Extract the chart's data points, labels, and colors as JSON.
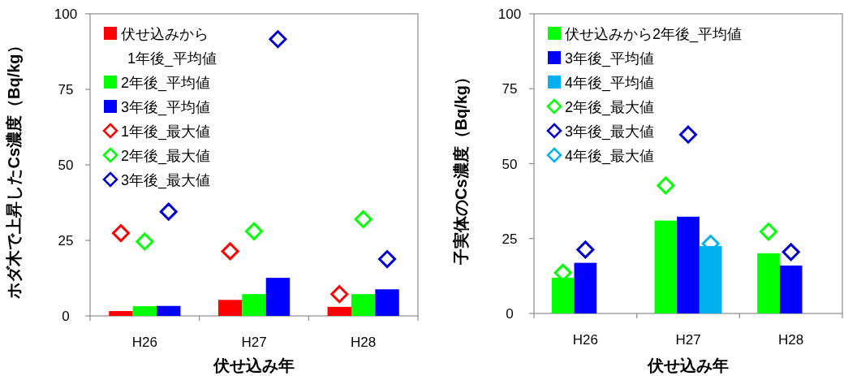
{
  "chart_data": [
    {
      "type": "bar",
      "categories": [
        "H26",
        "H27",
        "H28"
      ],
      "xlabel": "伏せ込み年",
      "ylabel": "ホダ木で上昇したCs濃度（Bq/kg）",
      "ylim": [
        0,
        100
      ],
      "yticks": [
        0,
        25,
        50,
        75,
        100
      ],
      "legend": "top left",
      "grid": false,
      "series": [
        {
          "name": "伏せ込みから\n1年後_平均値",
          "color": "#ff0000",
          "values": [
            1.6,
            5.3,
            3.0
          ]
        },
        {
          "name": "2年後_平均値",
          "color": "#00ff00",
          "values": [
            3.2,
            7.2,
            7.2
          ]
        },
        {
          "name": "3年後_平均値",
          "color": "#0000ff",
          "values": [
            3.3,
            12.6,
            8.8
          ]
        },
        {
          "name": "1年後_最大値",
          "type": "scatter",
          "marker": "diamond",
          "color": "#ff0000",
          "x": [
            "H26",
            "H27",
            "H28"
          ],
          "values": [
            27.4,
            21.4,
            7.2
          ]
        },
        {
          "name": "2年後_最大値",
          "type": "scatter",
          "marker": "diamond",
          "color": "#00ff00",
          "x": [
            "H26",
            "H27",
            "H28"
          ],
          "values": [
            24.6,
            28.0,
            32.0
          ]
        },
        {
          "name": "3年後_最大値",
          "type": "scatter",
          "marker": "diamond",
          "color": "#0000cc",
          "x": [
            "H26",
            "H27",
            "H28"
          ],
          "values": [
            34.5,
            91.6,
            18.8
          ]
        }
      ]
    },
    {
      "type": "bar",
      "categories": [
        "H26",
        "H27",
        "H28"
      ],
      "xlabel": "伏せ込み年",
      "ylabel": "子実体のCs濃度（Bq/kg）",
      "ylim": [
        0,
        100
      ],
      "yticks": [
        0,
        25,
        50,
        75,
        100
      ],
      "legend": "top left",
      "grid": false,
      "series": [
        {
          "name": "伏せ込みから2年後_平均値",
          "color": "#00ff00",
          "values": [
            11.9,
            31.0,
            20.1
          ]
        },
        {
          "name": "3年後_平均値",
          "color": "#0000ff",
          "values": [
            16.9,
            32.3,
            16.0
          ]
        },
        {
          "name": "4年後_平均値",
          "color": "#00b0f0",
          "values": [
            null,
            22.5,
            null
          ]
        },
        {
          "name": "2年後_最大値",
          "type": "scatter",
          "marker": "diamond",
          "color": "#00ff00",
          "x": [
            "H26",
            "H27",
            "H28"
          ],
          "values": [
            13.6,
            42.7,
            27.3
          ]
        },
        {
          "name": "3年後_最大値",
          "type": "scatter",
          "marker": "diamond",
          "color": "#0000cc",
          "x": [
            "H26",
            "H27",
            "H28"
          ],
          "values": [
            21.3,
            59.7,
            20.5
          ]
        },
        {
          "name": "4年後_最大値",
          "type": "scatter",
          "marker": "diamond",
          "color": "#00b0f0",
          "x": [
            "H26",
            "H27",
            "H28"
          ],
          "values": [
            null,
            23.3,
            null
          ]
        }
      ]
    }
  ]
}
